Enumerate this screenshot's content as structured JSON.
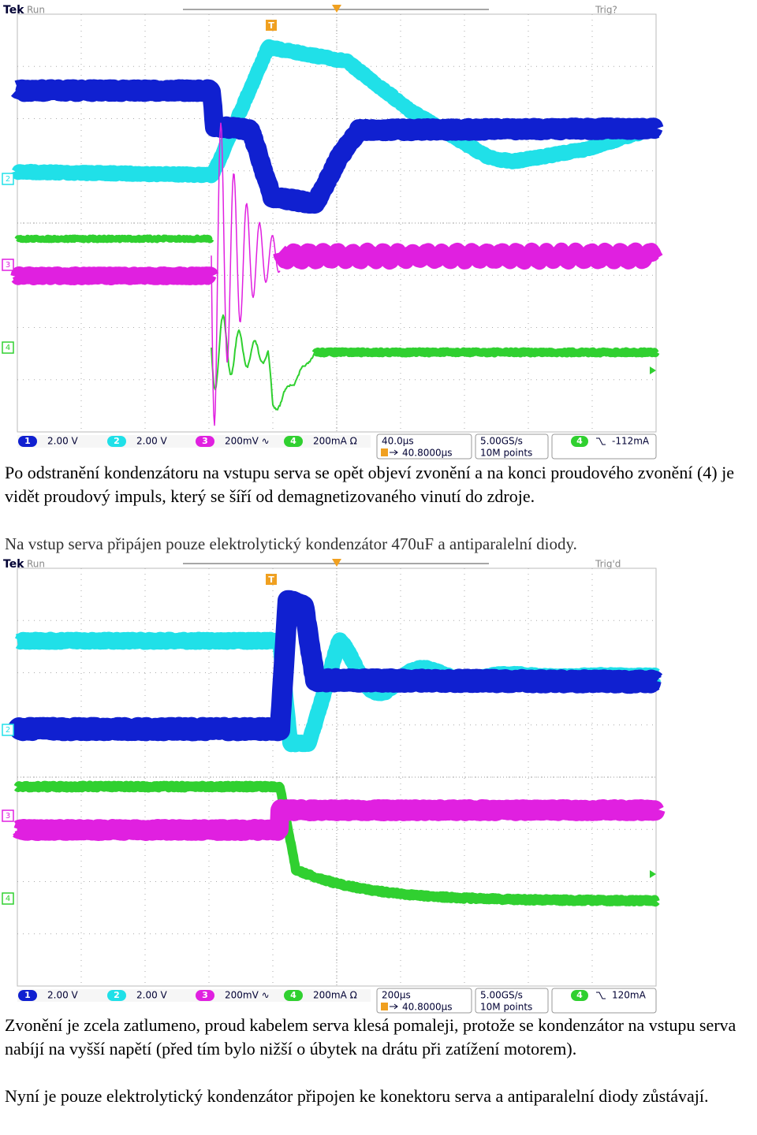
{
  "scopes": [
    {
      "brand": "Tek",
      "status": "Run",
      "trigger_state": "Trig?",
      "trigger_marker": "T",
      "channels": [
        {
          "number": "1",
          "scale": "2.00 V"
        },
        {
          "number": "2",
          "scale": "2.00 V"
        },
        {
          "number": "3",
          "scale": "200mV ∿"
        },
        {
          "number": "4",
          "scale": "200mA Ω"
        }
      ],
      "timebase": "40.0µs",
      "trigger_position": "40.8000µs",
      "sample_rate": "5.00GS/s",
      "record_length": "10M points",
      "trigger_channel": "4",
      "trigger_level": "-112mA"
    },
    {
      "brand": "Tek",
      "status": "Run",
      "trigger_state": "Trig'd",
      "trigger_marker": "T",
      "channels": [
        {
          "number": "1",
          "scale": "2.00 V"
        },
        {
          "number": "2",
          "scale": "2.00 V"
        },
        {
          "number": "3",
          "scale": "200mV ∿"
        },
        {
          "number": "4",
          "scale": "200mA Ω"
        }
      ],
      "timebase": "200µs",
      "trigger_position": "40.8000µs",
      "sample_rate": "5.00GS/s",
      "record_length": "10M points",
      "trigger_channel": "4",
      "trigger_level": "120mA"
    }
  ],
  "paragraphs": [
    "Po odstranění kondenzátoru na vstupu serva se opět objeví zvonění a na konci proudového zvonění (4) je vidět proudový impuls, který se šíří od demagnetizovaného vinutí do zdroje.",
    "Na vstup serva připájen pouze elektrolytický kondenzátor 470uF a antiparalelní diody.",
    "Zvonění je zcela zatlumeno, proud kabelem serva klesá pomaleji, protože se kondenzátor na vstupu serva nabíjí na vyšší napětí (před tím bylo nižší o úbytek na drátu při zatížení motorem).",
    "Nyní je pouze elektrolytický kondenzátor připojen ke konektoru serva a antiparalelní diody zůstávají."
  ]
}
